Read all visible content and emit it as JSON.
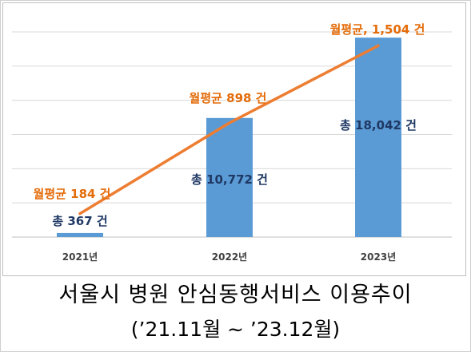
{
  "chart_data": {
    "type": "bar",
    "categories": [
      "2021년",
      "2022년",
      "2023년"
    ],
    "series": [
      {
        "values": [
          367,
          10772,
          18042
        ],
        "labels": [
          "총 367 건",
          "총 10,772 건",
          "총 18,042 건"
        ],
        "color": "#5b9bd5"
      },
      {
        "type": "line",
        "values": [
          184,
          898,
          1504
        ],
        "labels": [
          "월평균 184 건",
          "월평균 898 건",
          "월평균, 1,504 건"
        ],
        "color": "#ed7d31"
      }
    ],
    "grid": true,
    "ylim": [
      0,
      20000
    ],
    "line_ylim": [
      0,
      1700
    ]
  },
  "title": "서울시 병원 안심동행서비스 이용추이",
  "subtitle": "(’21.11월 ~ ’23.12월)",
  "colors": {
    "bar": "#5b9bd5",
    "line": "#ed7d31",
    "bar_label": "#1f3864",
    "line_label": "#e46c0a",
    "grid": "#d9d9d9"
  }
}
